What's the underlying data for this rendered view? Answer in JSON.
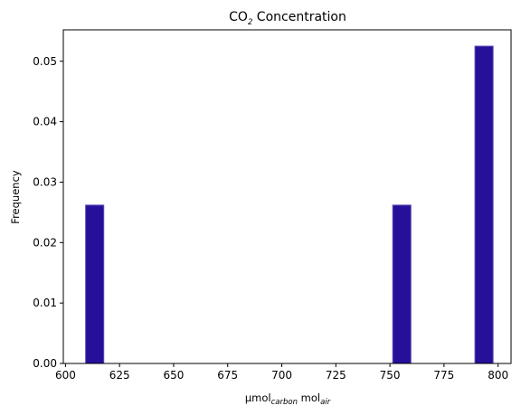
{
  "chart_data": {
    "type": "bar",
    "title": {
      "main": "CO",
      "sub": "2",
      "rest": " Concentration"
    },
    "xlabel": {
      "part1": "µmol",
      "sub1": "carbon",
      "part2": " mol",
      "sub2": "air"
    },
    "ylabel": "Frequency",
    "xlim": [
      599,
      806
    ],
    "ylim": [
      0,
      0.0552
    ],
    "xticks": [
      600,
      625,
      650,
      675,
      700,
      725,
      750,
      775,
      800
    ],
    "xtick_labels": [
      "600",
      "625",
      "650",
      "675",
      "700",
      "725",
      "750",
      "775",
      "800"
    ],
    "yticks": [
      0.0,
      0.01,
      0.02,
      0.03,
      0.04,
      0.05
    ],
    "ytick_labels": [
      "0.00",
      "0.01",
      "0.02",
      "0.03",
      "0.04",
      "0.05"
    ],
    "bins": [
      {
        "x0": 609.3,
        "x1": 617.7,
        "value": 0.0262
      },
      {
        "x0": 751.3,
        "x1": 759.7,
        "value": 0.0262
      },
      {
        "x0": 789.3,
        "x1": 797.7,
        "value": 0.0525
      }
    ],
    "bar_color": "#26109a",
    "edge_color": "#5a4fb8",
    "grid": false
  }
}
